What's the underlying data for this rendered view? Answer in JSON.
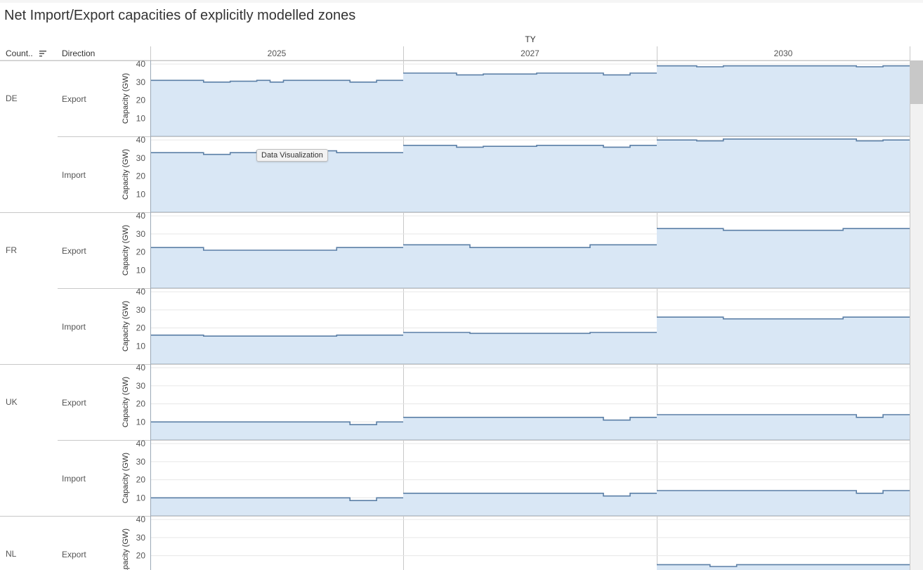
{
  "title": "Net Import/Export capacities of explicitly modelled zones",
  "headers": {
    "country": "Count..",
    "direction": "Direction",
    "ty": "TY"
  },
  "tooltip": "Data Visualization",
  "colors": {
    "area_fill": "#d9e7f5",
    "line": "#5b7fa6",
    "grid": "#e6e6e6",
    "border": "#9aa8b6"
  },
  "chart_data": {
    "type": "area",
    "ylabel": "Capacity (GW)",
    "yticks": [
      10,
      20,
      30,
      40
    ],
    "ylim": [
      0,
      42
    ],
    "columns": [
      "2025",
      "2027",
      "2030"
    ],
    "rows": [
      {
        "country": "DE",
        "direction": "Export",
        "series": [
          [
            31,
            31,
            31,
            31,
            30,
            30,
            30.5,
            30.5,
            31,
            30,
            31,
            31,
            31,
            31,
            31,
            30,
            30,
            31,
            31
          ],
          [
            35,
            35,
            35,
            35,
            34,
            34,
            34.5,
            34.5,
            34.5,
            34.5,
            35,
            35,
            35,
            35,
            35,
            34,
            34,
            35,
            35
          ],
          [
            39,
            39,
            39,
            38.5,
            38.5,
            39,
            39,
            39,
            39,
            39,
            39,
            39,
            39,
            39,
            39,
            38.5,
            38.5,
            39,
            39
          ]
        ]
      },
      {
        "country": "",
        "direction": "Import",
        "series": [
          [
            33,
            33,
            33,
            33,
            32,
            32,
            33,
            33,
            34,
            34,
            34,
            34,
            34,
            34,
            33,
            33,
            33,
            33,
            33
          ],
          [
            37,
            37,
            37,
            37,
            36,
            36,
            36.5,
            36.5,
            36.5,
            36.5,
            37,
            37,
            37,
            37,
            37,
            36,
            36,
            37,
            37
          ],
          [
            40,
            40,
            40,
            39.5,
            39.5,
            40.5,
            40.5,
            40.5,
            40.5,
            40.5,
            40.5,
            40.5,
            40.5,
            40.5,
            40.5,
            39.5,
            39.5,
            40,
            40
          ]
        ]
      },
      {
        "country": "FR",
        "direction": "Export",
        "series": [
          [
            22.5,
            22.5,
            22.5,
            22.5,
            21,
            21,
            21,
            21,
            21,
            21,
            21,
            21,
            21,
            21,
            22.5,
            22.5,
            22.5,
            22.5,
            22.5
          ],
          [
            24,
            24,
            24,
            24,
            24,
            22.5,
            22.5,
            22.5,
            22.5,
            22.5,
            22.5,
            22.5,
            22.5,
            22.5,
            24,
            24,
            24,
            24,
            24
          ],
          [
            33,
            33,
            33,
            33,
            33,
            32,
            32,
            32,
            32,
            32,
            32,
            32,
            32,
            32,
            33,
            33,
            33,
            33,
            33
          ]
        ]
      },
      {
        "country": "",
        "direction": "Import",
        "series": [
          [
            16,
            16,
            16,
            16,
            15.5,
            15.5,
            15.5,
            15.5,
            15.5,
            15.5,
            15.5,
            15.5,
            15.5,
            15.5,
            16,
            16,
            16,
            16,
            16
          ],
          [
            17.5,
            17.5,
            17.5,
            17.5,
            17.5,
            17,
            17,
            17,
            17,
            17,
            17,
            17,
            17,
            17,
            17.5,
            17.5,
            17.5,
            17.5,
            17.5
          ],
          [
            26,
            26,
            26,
            26,
            26,
            25,
            25,
            25,
            25,
            25,
            25,
            25,
            25,
            25,
            26,
            26,
            26,
            26,
            26
          ]
        ]
      },
      {
        "country": "UK",
        "direction": "Export",
        "series": [
          [
            10,
            10,
            10,
            10,
            10,
            10,
            10,
            10,
            10,
            10,
            10,
            10,
            10,
            10,
            10,
            8.5,
            8.5,
            10,
            10
          ],
          [
            12.5,
            12.5,
            12.5,
            12.5,
            12.5,
            12.5,
            12.5,
            12.5,
            12.5,
            12.5,
            12.5,
            12.5,
            12.5,
            12.5,
            12.5,
            11,
            11,
            12.5,
            12.5
          ],
          [
            14,
            14,
            14,
            14,
            14,
            14,
            14,
            14,
            14,
            14,
            14,
            14,
            14,
            14,
            14,
            12.5,
            12.5,
            14,
            14
          ]
        ]
      },
      {
        "country": "",
        "direction": "Import",
        "series": [
          [
            10,
            10,
            10,
            10,
            10,
            10,
            10,
            10,
            10,
            10,
            10,
            10,
            10,
            10,
            10,
            8.5,
            8.5,
            10,
            10
          ],
          [
            12.5,
            12.5,
            12.5,
            12.5,
            12.5,
            12.5,
            12.5,
            12.5,
            12.5,
            12.5,
            12.5,
            12.5,
            12.5,
            12.5,
            12.5,
            11,
            11,
            12.5,
            12.5
          ],
          [
            14,
            14,
            14,
            14,
            14,
            14,
            14,
            14,
            14,
            14,
            14,
            14,
            14,
            14,
            14,
            12.5,
            12.5,
            14,
            14
          ]
        ]
      },
      {
        "country": "NL",
        "direction": "Export",
        "series": [
          [
            null
          ],
          [
            null
          ],
          [
            15,
            15,
            15,
            15,
            14,
            14,
            15,
            15,
            15,
            15,
            15,
            15,
            15,
            15,
            15,
            15,
            15,
            15,
            15
          ]
        ]
      }
    ]
  }
}
